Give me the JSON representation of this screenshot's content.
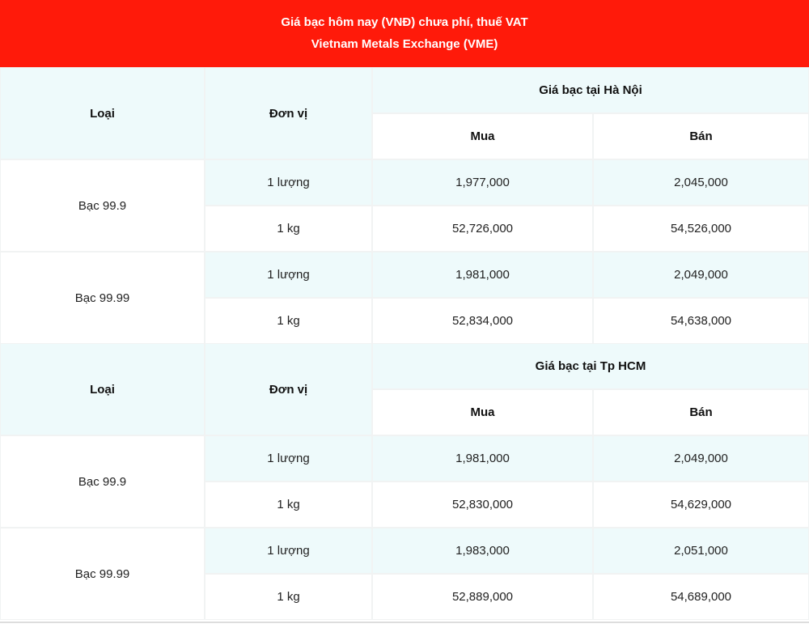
{
  "header": {
    "title": "Giá bạc hôm nay (VNĐ) chưa phí, thuế VAT",
    "subtitle": "Vietnam Metals Exchange (VME)"
  },
  "sections": [
    {
      "columns": {
        "type": "Loại",
        "unit": "Đơn vị",
        "region": "Giá bạc tại Hà Nội",
        "buy": "Mua",
        "sell": "Bán"
      },
      "groups": [
        {
          "name": "Bạc 99.9",
          "rows": [
            [
              "1 lượng",
              "1,977,000",
              "2,045,000"
            ],
            [
              "1 kg",
              "52,726,000",
              "54,526,000"
            ]
          ]
        },
        {
          "name": "Bạc 99.99",
          "rows": [
            [
              "1 lượng",
              "1,981,000",
              "2,049,000"
            ],
            [
              "1 kg",
              "52,834,000",
              "54,638,000"
            ]
          ]
        }
      ]
    },
    {
      "columns": {
        "type": "Loại",
        "unit": "Đơn vị",
        "region": "Giá bạc tại Tp HCM",
        "buy": "Mua",
        "sell": "Bán"
      },
      "groups": [
        {
          "name": "Bạc 99.9",
          "rows": [
            [
              "1 lượng",
              "1,981,000",
              "2,049,000"
            ],
            [
              "1 kg",
              "52,830,000",
              "54,629,000"
            ]
          ]
        },
        {
          "name": "Bạc 99.99",
          "rows": [
            [
              "1 lượng",
              "1,983,000",
              "2,051,000"
            ],
            [
              "1 kg",
              "52,889,000",
              "54,689,000"
            ]
          ]
        }
      ]
    }
  ]
}
